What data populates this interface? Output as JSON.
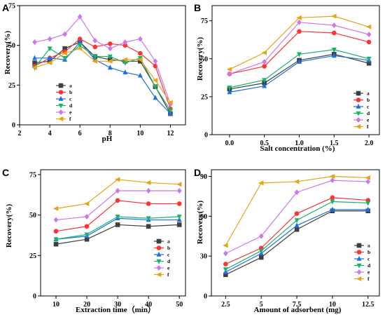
{
  "colors": {
    "a": "#404040",
    "b": "#ff3333",
    "c": "#1f6fe0",
    "d": "#19b36b",
    "e": "#cc77ee",
    "f": "#e8a317"
  },
  "legend_keys": [
    "a",
    "b",
    "c",
    "d",
    "e",
    "f"
  ],
  "chart_data": [
    {
      "type": "line",
      "panel_letter": "A",
      "xlabel": "pH",
      "ylabel": "Recovery(%)",
      "xlim": [
        2,
        13
      ],
      "ylim": [
        0,
        75
      ],
      "xticks": [
        2,
        4,
        6,
        8,
        10,
        12
      ],
      "yticks": [
        0,
        25,
        50,
        75
      ],
      "legend_position": "left",
      "x": [
        3,
        4,
        5,
        6,
        7,
        8,
        9,
        10,
        11,
        12
      ],
      "series": [
        {
          "name": "a",
          "values": [
            39,
            40,
            48,
            52,
            43,
            41,
            40,
            40,
            24,
            7
          ]
        },
        {
          "name": "b",
          "values": [
            37,
            42,
            46,
            54,
            49,
            51,
            50,
            45,
            37,
            10
          ]
        },
        {
          "name": "c",
          "values": [
            42,
            42,
            41,
            52,
            41,
            36,
            33,
            31,
            17,
            7
          ]
        },
        {
          "name": "d",
          "values": [
            36,
            48,
            42,
            50,
            43,
            43,
            39,
            42,
            24,
            9
          ]
        },
        {
          "name": "e",
          "values": [
            52,
            54,
            57,
            68,
            53,
            48,
            52,
            54,
            40,
            13
          ]
        },
        {
          "name": "f",
          "values": [
            36,
            39,
            45,
            48,
            40,
            40,
            41,
            41,
            28,
            14
          ]
        }
      ]
    },
    {
      "type": "line",
      "panel_letter": "B",
      "xlabel": "Salt concentration (%)",
      "ylabel": "Recovery(%)",
      "xlim": [
        -0.25,
        2.15
      ],
      "ylim": [
        0,
        85
      ],
      "xticks": [
        "0.0",
        "0.5",
        "1.0",
        "1.5",
        "2.0"
      ],
      "yticks": [
        0,
        25,
        50,
        75
      ],
      "legend_position": "bottom-right",
      "x": [
        0,
        0.5,
        1.0,
        1.5,
        2.0
      ],
      "series": [
        {
          "name": "a",
          "values": [
            30,
            34,
            49,
            53,
            47
          ]
        },
        {
          "name": "b",
          "values": [
            40,
            45,
            68,
            67,
            61
          ]
        },
        {
          "name": "c",
          "values": [
            28,
            32,
            48,
            52,
            49
          ]
        },
        {
          "name": "d",
          "values": [
            31,
            36,
            53,
            56,
            50
          ]
        },
        {
          "name": "e",
          "values": [
            40,
            48,
            74,
            72,
            66
          ]
        },
        {
          "name": "f",
          "values": [
            43,
            54,
            77,
            78,
            71
          ]
        }
      ]
    },
    {
      "type": "line",
      "panel_letter": "C",
      "xlabel": "Extraction time（min）",
      "ylabel": "Recovery(%)",
      "xlim": [
        5,
        52
      ],
      "ylim": [
        0,
        78
      ],
      "xticks": [
        10,
        20,
        30,
        40,
        50
      ],
      "yticks": [
        0,
        25,
        50,
        75
      ],
      "legend_position": "bottom-right",
      "x": [
        10,
        20,
        30,
        40,
        50
      ],
      "series": [
        {
          "name": "a",
          "values": [
            32,
            35,
            44,
            43,
            44
          ]
        },
        {
          "name": "b",
          "values": [
            40,
            43,
            59,
            57,
            57
          ]
        },
        {
          "name": "c",
          "values": [
            35,
            37,
            48,
            47,
            47
          ]
        },
        {
          "name": "d",
          "values": [
            35,
            38,
            49,
            48,
            49
          ]
        },
        {
          "name": "e",
          "values": [
            47,
            49,
            65,
            65,
            65
          ]
        },
        {
          "name": "f",
          "values": [
            54,
            57,
            72,
            70,
            69
          ]
        }
      ]
    },
    {
      "type": "line",
      "panel_letter": "D",
      "xlabel": "Amount of adsorbent (mg)",
      "ylabel": "Recovery(%)",
      "xlim": [
        1.5,
        13.3
      ],
      "ylim": [
        0,
        95
      ],
      "xticks": [
        "2.5",
        "5",
        "7.5",
        "10",
        "12.5"
      ],
      "yticks": [
        0,
        30,
        60,
        90
      ],
      "legend_position": "bottom-right",
      "x": [
        2.5,
        5,
        7.5,
        10,
        12.5
      ],
      "series": [
        {
          "name": "a",
          "values": [
            16,
            29,
            50,
            64,
            64
          ]
        },
        {
          "name": "b",
          "values": [
            24,
            36,
            62,
            74,
            72
          ]
        },
        {
          "name": "c",
          "values": [
            18,
            32,
            53,
            65,
            65
          ]
        },
        {
          "name": "d",
          "values": [
            20,
            34,
            57,
            71,
            70
          ]
        },
        {
          "name": "e",
          "values": [
            32,
            45,
            78,
            87,
            86
          ]
        },
        {
          "name": "f",
          "values": [
            38,
            85,
            86,
            90,
            89
          ]
        }
      ]
    }
  ]
}
